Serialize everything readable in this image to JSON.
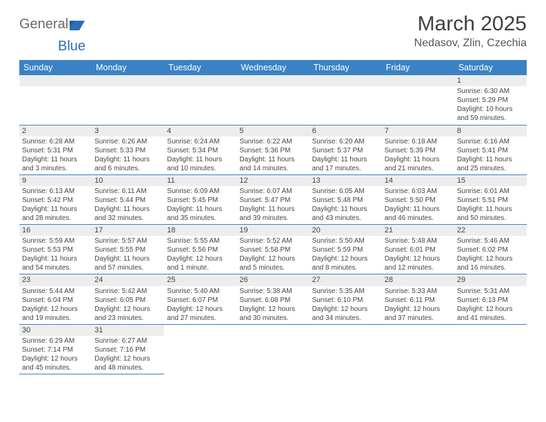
{
  "logo": {
    "text_general": "General",
    "text_blue": "Blue",
    "shape_color": "#2a6fb5"
  },
  "title": {
    "month": "March 2025",
    "location": "Nedasov, Zlin, Czechia"
  },
  "colors": {
    "header_bg": "#3a82c4",
    "header_text": "#ffffff",
    "row_divider": "#3a82c4",
    "daynum_bg": "#eceeee",
    "text": "#454545"
  },
  "day_headers": [
    "Sunday",
    "Monday",
    "Tuesday",
    "Wednesday",
    "Thursday",
    "Friday",
    "Saturday"
  ],
  "weeks": [
    [
      null,
      null,
      null,
      null,
      null,
      null,
      {
        "d": "1",
        "sr": "6:30 AM",
        "ss": "5:29 PM",
        "dl": "10 hours and 59 minutes."
      }
    ],
    [
      {
        "d": "2",
        "sr": "6:28 AM",
        "ss": "5:31 PM",
        "dl": "11 hours and 3 minutes."
      },
      {
        "d": "3",
        "sr": "6:26 AM",
        "ss": "5:33 PM",
        "dl": "11 hours and 6 minutes."
      },
      {
        "d": "4",
        "sr": "6:24 AM",
        "ss": "5:34 PM",
        "dl": "11 hours and 10 minutes."
      },
      {
        "d": "5",
        "sr": "6:22 AM",
        "ss": "5:36 PM",
        "dl": "11 hours and 14 minutes."
      },
      {
        "d": "6",
        "sr": "6:20 AM",
        "ss": "5:37 PM",
        "dl": "11 hours and 17 minutes."
      },
      {
        "d": "7",
        "sr": "6:18 AM",
        "ss": "5:39 PM",
        "dl": "11 hours and 21 minutes."
      },
      {
        "d": "8",
        "sr": "6:16 AM",
        "ss": "5:41 PM",
        "dl": "11 hours and 25 minutes."
      }
    ],
    [
      {
        "d": "9",
        "sr": "6:13 AM",
        "ss": "5:42 PM",
        "dl": "11 hours and 28 minutes."
      },
      {
        "d": "10",
        "sr": "6:11 AM",
        "ss": "5:44 PM",
        "dl": "11 hours and 32 minutes."
      },
      {
        "d": "11",
        "sr": "6:09 AM",
        "ss": "5:45 PM",
        "dl": "11 hours and 35 minutes."
      },
      {
        "d": "12",
        "sr": "6:07 AM",
        "ss": "5:47 PM",
        "dl": "11 hours and 39 minutes."
      },
      {
        "d": "13",
        "sr": "6:05 AM",
        "ss": "5:48 PM",
        "dl": "11 hours and 43 minutes."
      },
      {
        "d": "14",
        "sr": "6:03 AM",
        "ss": "5:50 PM",
        "dl": "11 hours and 46 minutes."
      },
      {
        "d": "15",
        "sr": "6:01 AM",
        "ss": "5:51 PM",
        "dl": "11 hours and 50 minutes."
      }
    ],
    [
      {
        "d": "16",
        "sr": "5:59 AM",
        "ss": "5:53 PM",
        "dl": "11 hours and 54 minutes."
      },
      {
        "d": "17",
        "sr": "5:57 AM",
        "ss": "5:55 PM",
        "dl": "11 hours and 57 minutes."
      },
      {
        "d": "18",
        "sr": "5:55 AM",
        "ss": "5:56 PM",
        "dl": "12 hours and 1 minute."
      },
      {
        "d": "19",
        "sr": "5:52 AM",
        "ss": "5:58 PM",
        "dl": "12 hours and 5 minutes."
      },
      {
        "d": "20",
        "sr": "5:50 AM",
        "ss": "5:59 PM",
        "dl": "12 hours and 8 minutes."
      },
      {
        "d": "21",
        "sr": "5:48 AM",
        "ss": "6:01 PM",
        "dl": "12 hours and 12 minutes."
      },
      {
        "d": "22",
        "sr": "5:46 AM",
        "ss": "6:02 PM",
        "dl": "12 hours and 16 minutes."
      }
    ],
    [
      {
        "d": "23",
        "sr": "5:44 AM",
        "ss": "6:04 PM",
        "dl": "12 hours and 19 minutes."
      },
      {
        "d": "24",
        "sr": "5:42 AM",
        "ss": "6:05 PM",
        "dl": "12 hours and 23 minutes."
      },
      {
        "d": "25",
        "sr": "5:40 AM",
        "ss": "6:07 PM",
        "dl": "12 hours and 27 minutes."
      },
      {
        "d": "26",
        "sr": "5:38 AM",
        "ss": "6:08 PM",
        "dl": "12 hours and 30 minutes."
      },
      {
        "d": "27",
        "sr": "5:35 AM",
        "ss": "6:10 PM",
        "dl": "12 hours and 34 minutes."
      },
      {
        "d": "28",
        "sr": "5:33 AM",
        "ss": "6:11 PM",
        "dl": "12 hours and 37 minutes."
      },
      {
        "d": "29",
        "sr": "5:31 AM",
        "ss": "6:13 PM",
        "dl": "12 hours and 41 minutes."
      }
    ],
    [
      {
        "d": "30",
        "sr": "6:29 AM",
        "ss": "7:14 PM",
        "dl": "12 hours and 45 minutes."
      },
      {
        "d": "31",
        "sr": "6:27 AM",
        "ss": "7:16 PM",
        "dl": "12 hours and 48 minutes."
      },
      null,
      null,
      null,
      null,
      null
    ]
  ],
  "labels": {
    "sunrise": "Sunrise:",
    "sunset": "Sunset:",
    "daylight": "Daylight:"
  }
}
